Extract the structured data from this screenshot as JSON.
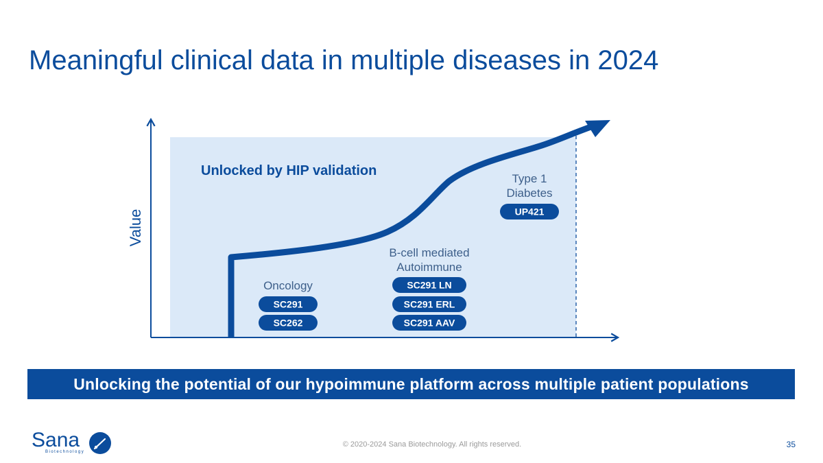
{
  "slide": {
    "title": "Meaningful clinical data in multiple diseases in 2024",
    "banner": "Unlocking the potential of our hypoimmune platform across multiple patient populations",
    "footer": "© 2020-2024 Sana Biotechnology. All rights reserved.",
    "page_number": "35"
  },
  "logo": {
    "name": "Sana",
    "tagline": "Biotechnology"
  },
  "diagram": {
    "y_axis_label": "Value",
    "region_label": "Unlocked by HIP validation",
    "groups": {
      "oncology": {
        "label": "Oncology",
        "programs": [
          "SC291",
          "SC262"
        ]
      },
      "autoimmune": {
        "label_line1": "B-cell mediated",
        "label_line2": "Autoimmune",
        "programs": [
          "SC291 LN",
          "SC291 ERL",
          "SC291 AAV"
        ]
      },
      "diabetes": {
        "label_line1": "Type 1",
        "label_line2": "Diabetes",
        "programs": [
          "UP421"
        ]
      }
    }
  },
  "colors": {
    "brand_blue": "#0b4c9c",
    "region_fill": "#dbe9f8",
    "pill_fill": "#0b4c9c",
    "group_label": "#3d5f8a"
  }
}
